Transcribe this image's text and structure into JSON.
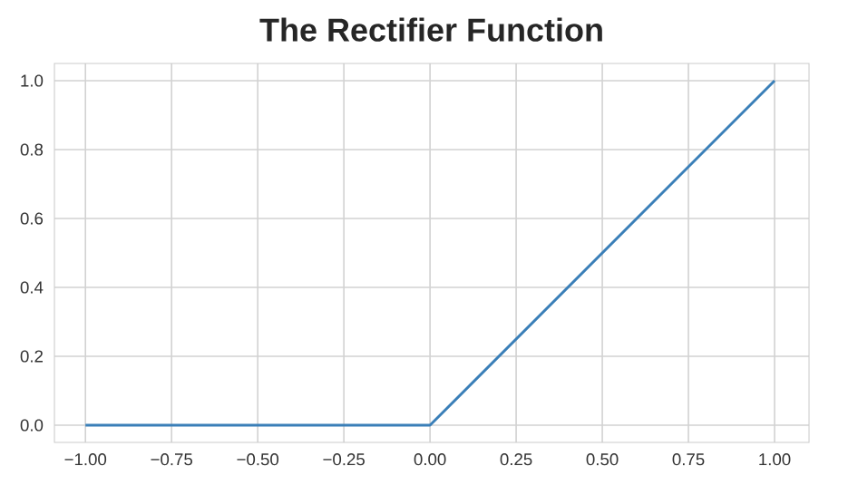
{
  "chart_data": {
    "type": "line",
    "title": "The Rectifier Function",
    "x": [
      -1,
      0,
      1
    ],
    "series": [
      {
        "color": "#3a7fb8",
        "values": [
          0,
          0,
          1
        ]
      }
    ],
    "xlim": [
      -1.09,
      1.1
    ],
    "ylim": [
      -0.05,
      1.05
    ],
    "xticks": [
      {
        "value": -1,
        "label": "−1.00"
      },
      {
        "value": -0.75,
        "label": "−0.75"
      },
      {
        "value": -0.5,
        "label": "−0.50"
      },
      {
        "value": -0.25,
        "label": "−0.25"
      },
      {
        "value": 0,
        "label": "0.00"
      },
      {
        "value": 0.25,
        "label": "0.25"
      },
      {
        "value": 0.5,
        "label": "0.50"
      },
      {
        "value": 0.75,
        "label": "0.75"
      },
      {
        "value": 1,
        "label": "1.00"
      }
    ],
    "yticks": [
      {
        "value": 0,
        "label": "0.0"
      },
      {
        "value": 0.2,
        "label": "0.2"
      },
      {
        "value": 0.4,
        "label": "0.4"
      },
      {
        "value": 0.6,
        "label": "0.6"
      },
      {
        "value": 0.8,
        "label": "0.8"
      },
      {
        "value": 1,
        "label": "1.0"
      }
    ],
    "grid": true,
    "marker": "none",
    "line_style": "solid"
  }
}
